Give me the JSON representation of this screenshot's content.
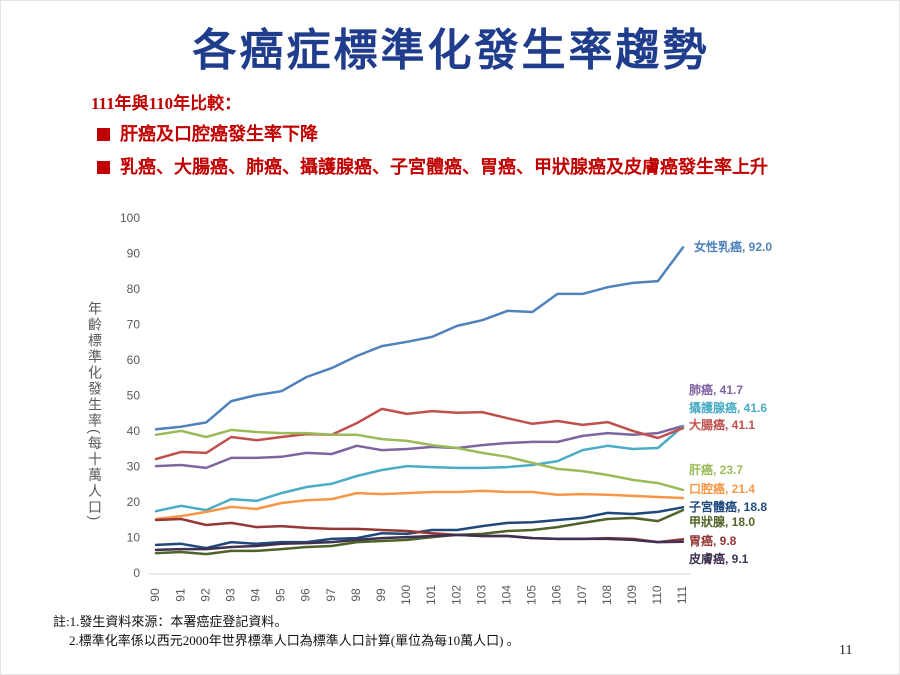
{
  "summary": {
    "heading": "111年與110年比較：",
    "bullets": [
      "肝癌及口腔癌發生率下降",
      "乳癌、大腸癌、肺癌、攝護腺癌、子宮體癌、胃癌、甲狀腺癌及皮膚癌發生率上升"
    ],
    "bullet_color": "#c00000"
  },
  "notes": [
    "註:1.發生資料來源：本署癌症登記資料。",
    "2.標準化率係以西元2000年世界標準人口為標準人口計算(單位為每10萬人口) 。"
  ],
  "page_number": "11",
  "chart_data": {
    "type": "line",
    "title": "各癌症標準化發生率趨勢",
    "xlabel": "",
    "ylabel": "年齡標準化發生率(每十萬人口)",
    "ylim": [
      0,
      100
    ],
    "yticks": [
      0,
      10,
      20,
      30,
      40,
      50,
      60,
      70,
      80,
      90,
      100
    ],
    "grid": false,
    "categories": [
      "90",
      "91",
      "92",
      "93",
      "94",
      "95",
      "96",
      "97",
      "98",
      "99",
      "100",
      "101",
      "102",
      "103",
      "104",
      "105",
      "106",
      "107",
      "108",
      "109",
      "110",
      "111"
    ],
    "series": [
      {
        "label": "女性乳癌, 92.0",
        "color": "#4f81bd",
        "values": [
          40.8,
          41.5,
          42.7,
          48.7,
          50.4,
          51.5,
          55.5,
          58.0,
          61.4,
          64.2,
          65.4,
          66.8,
          69.9,
          71.5,
          74.1,
          73.8,
          78.9,
          78.9,
          80.8,
          82.0,
          82.5,
          92.0
        ]
      },
      {
        "label": "肺癌, 41.7",
        "color": "#8064a2",
        "values": [
          30.4,
          30.7,
          29.9,
          32.7,
          32.7,
          33.0,
          34.1,
          33.8,
          36.1,
          34.9,
          35.2,
          35.8,
          35.5,
          36.3,
          36.9,
          37.2,
          37.2,
          38.9,
          39.7,
          39.2,
          39.7,
          41.7
        ]
      },
      {
        "label": "攝護腺癌, 41.6",
        "color": "#4bacc6",
        "values": [
          17.7,
          19.2,
          18.0,
          21.1,
          20.6,
          22.8,
          24.5,
          25.4,
          27.6,
          29.3,
          30.4,
          30.1,
          29.9,
          29.9,
          30.1,
          30.7,
          31.8,
          34.9,
          36.1,
          35.2,
          35.5,
          41.6
        ]
      },
      {
        "label": "大腸癌, 41.1",
        "color": "#c0504d",
        "values": [
          32.4,
          34.4,
          34.1,
          38.6,
          37.7,
          38.6,
          39.4,
          39.2,
          42.5,
          46.5,
          45.1,
          45.9,
          45.4,
          45.6,
          43.9,
          42.3,
          43.1,
          42.0,
          42.8,
          40.3,
          38.3,
          41.1
        ]
      },
      {
        "label": "肝癌, 23.7",
        "color": "#9bbb59",
        "values": [
          39.2,
          40.3,
          38.6,
          40.6,
          40.0,
          39.7,
          39.7,
          39.2,
          39.2,
          38.0,
          37.5,
          36.3,
          35.5,
          34.1,
          33.0,
          31.3,
          29.6,
          29.0,
          27.9,
          26.5,
          25.6,
          23.7
        ]
      },
      {
        "label": "口腔癌, 21.4",
        "color": "#f79646",
        "values": [
          15.5,
          16.3,
          17.5,
          18.9,
          18.3,
          20.0,
          20.8,
          21.1,
          22.8,
          22.5,
          22.8,
          23.1,
          23.1,
          23.4,
          23.1,
          23.1,
          22.3,
          22.5,
          22.3,
          22.0,
          21.7,
          21.4
        ]
      },
      {
        "label": "子宮體癌, 18.8",
        "color": "#1f497d",
        "values": [
          8.2,
          8.5,
          7.3,
          9.0,
          8.5,
          9.0,
          9.0,
          9.9,
          10.1,
          11.5,
          11.3,
          12.4,
          12.4,
          13.5,
          14.4,
          14.6,
          15.2,
          15.8,
          17.2,
          16.9,
          17.5,
          18.8
        ]
      },
      {
        "label": "甲狀腺, 18.0",
        "color": "#4f6228",
        "values": [
          5.9,
          6.2,
          5.6,
          6.5,
          6.5,
          7.0,
          7.6,
          7.9,
          9.0,
          9.3,
          9.6,
          10.4,
          11.0,
          11.3,
          12.1,
          12.4,
          13.2,
          14.4,
          15.5,
          15.8,
          14.9,
          18.0
        ]
      },
      {
        "label": "胃癌, 9.8",
        "color": "#953735",
        "values": [
          15.2,
          15.5,
          13.8,
          14.4,
          13.2,
          13.5,
          13.0,
          12.7,
          12.7,
          12.4,
          12.1,
          11.5,
          11.0,
          10.7,
          10.7,
          10.1,
          9.9,
          9.9,
          10.1,
          9.9,
          9.0,
          9.8
        ]
      },
      {
        "label": "皮膚癌, 9.1",
        "color": "#3f3151",
        "values": [
          6.8,
          7.0,
          7.0,
          7.6,
          7.9,
          8.5,
          8.7,
          9.0,
          9.6,
          10.1,
          10.4,
          10.7,
          11.0,
          10.7,
          10.7,
          10.1,
          9.9,
          9.9,
          9.9,
          9.6,
          9.0,
          9.1
        ]
      }
    ]
  }
}
